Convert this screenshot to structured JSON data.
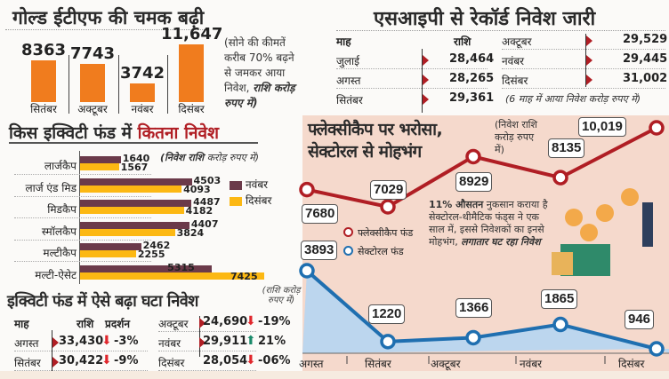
{
  "gold_etf": {
    "title": "गोल्ड ईटीएफ की चमक बढ़ी",
    "note": "(सोने की कीमतें करीब 70% बढ़ने से जमकर आया निवेश,",
    "note_bold": "राशि करोड़ रुपए में)"
  },
  "sip": {
    "title": "एसआइपी से रेकॉर्ड निवेश जारी",
    "headers": [
      "माह",
      "राशि"
    ],
    "rows": [
      {
        "month": "जुलाई",
        "value": "28,464"
      },
      {
        "month": "अगस्त",
        "value": "28,265"
      },
      {
        "month": "सितंबर",
        "value": "29,361"
      },
      {
        "month": "अक्टूबर",
        "value": "29,529"
      },
      {
        "month": "नवंबर",
        "value": "29,445"
      },
      {
        "month": "दिसंबर",
        "value": "31,002"
      }
    ],
    "note": "(6 माह में आया निवेश करोड़ रुपए में)"
  },
  "equity_funds": {
    "title_a": "किस इक्विटी फंड में",
    "title_b": "कितना निवेश",
    "note_bold": "(निवेश राशि",
    "note": "करोड़ रुपए में)"
  },
  "equity_flow": {
    "title": "इक्विटी फंड में ऐसे बढ़ा घटा निवेश",
    "note": "(राशि करोड़ रुपए में)",
    "headers": [
      "माह",
      "राशि",
      "प्रदर्शन"
    ],
    "rows": [
      {
        "month": "अगस्त",
        "value": "33,430",
        "change": "-3%",
        "direction": "down"
      },
      {
        "month": "सितंबर",
        "value": "30,422",
        "change": "-9%",
        "direction": "down"
      },
      {
        "month": "अक्टूबर",
        "value": "24,690",
        "change": "-19%",
        "direction": "down"
      },
      {
        "month": "नवंबर",
        "value": "29,911",
        "change": "21%",
        "direction": "up"
      },
      {
        "month": "दिसंबर",
        "value": "28,054",
        "change": "-06%",
        "direction": "down"
      }
    ]
  },
  "flexi": {
    "title_line1": "फ्लेक्सीकैप पर भरोसा,",
    "title_line2": "सेक्टोरल से मोहभंग",
    "note": "(निवेश राशि करोड़ रुपए में)",
    "callout_bold": "11% औसतन",
    "callout": "नुकसान कराया है सेक्टोरल-थीमैटिक फंड्स ने एक साल में, इससे निवेशकों का इनसे मोहभंग,",
    "callout_bold2": "लगातार घट रहा निवेश"
  },
  "colors": {
    "orange": "#f07c1e",
    "maroon": "#6b3a4a",
    "yellow": "#fcb813",
    "red": "#b01e24",
    "blue": "#1f6fb0",
    "pink_bg": "#f5d9cc",
    "blue_fill": "#bcd6ee",
    "green": "#1a8a6a"
  },
  "chart_data": [
    {
      "type": "bar",
      "categories": [
        "सितंबर",
        "अक्टूबर",
        "नवंबर",
        "दिसंबर"
      ],
      "values": [
        8363,
        7743,
        3742,
        11647
      ],
      "data_labels": [
        "8363",
        "7743",
        "3742",
        "11,647"
      ]
    },
    {
      "type": "bar",
      "orientation": "horizontal",
      "categories": [
        "लार्जकैप",
        "लार्ज एंड मिड",
        "मिडकैप",
        "स्मॉलकैप",
        "मल्टीकैप",
        "मल्टी-ऐसेट"
      ],
      "series": [
        {
          "name": "नवंबर",
          "values": [
            1640,
            4503,
            4487,
            4407,
            2462,
            5315
          ]
        },
        {
          "name": "दिसंबर",
          "values": [
            1567,
            4093,
            4182,
            3824,
            2255,
            7425
          ]
        }
      ],
      "legend": "right"
    },
    {
      "type": "line",
      "categories": [
        "अगस्त",
        "सितंबर",
        "अक्टूबर",
        "नवंबर",
        "दिसंबर"
      ],
      "series": [
        {
          "name": "फ्लेक्सीकैप फंड",
          "values": [
            7680,
            7029,
            8929,
            8135,
            10019
          ],
          "data_labels": [
            "7680",
            "7029",
            "8929",
            "8135",
            "10,019"
          ]
        },
        {
          "name": "सेक्टोरल फंड",
          "values": [
            3893,
            1220,
            1366,
            1865,
            946
          ],
          "data_labels": [
            "3893",
            "1220",
            "1366",
            "1865",
            "946"
          ]
        }
      ],
      "legend": "left"
    }
  ]
}
